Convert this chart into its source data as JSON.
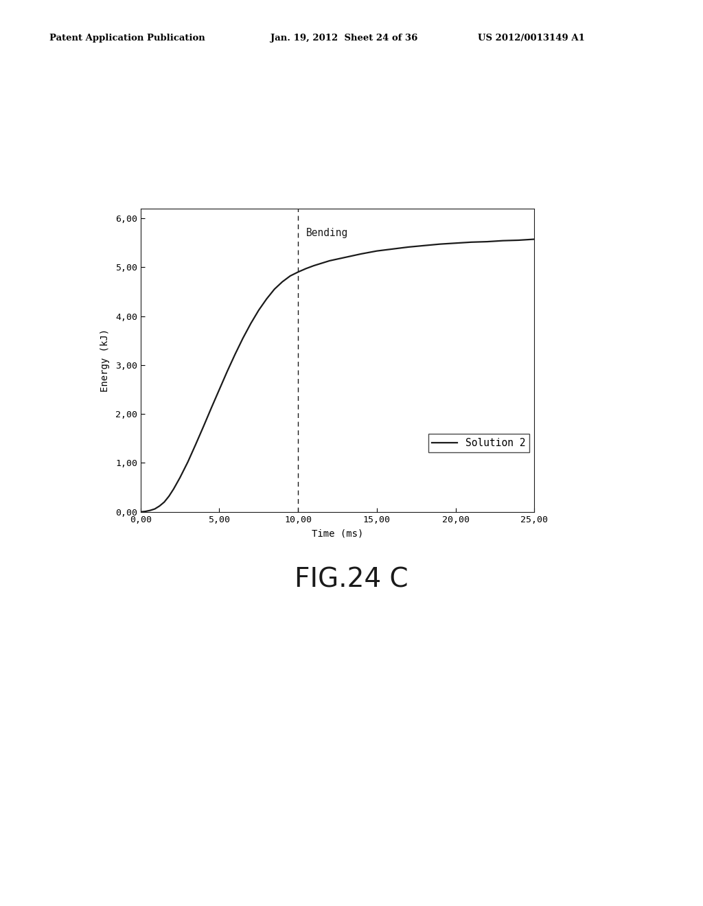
{
  "header_left": "Patent Application Publication",
  "header_mid": "Jan. 19, 2012  Sheet 24 of 36",
  "header_right": "US 2012/0013149 A1",
  "fig_label": "FIG.24 C",
  "xlabel": "Time (ms)",
  "ylabel": "Energy (kJ)",
  "xlim": [
    0,
    25
  ],
  "ylim": [
    0,
    6.2
  ],
  "xticks": [
    0.0,
    5.0,
    10.0,
    15.0,
    20.0,
    25.0
  ],
  "yticks": [
    0.0,
    1.0,
    2.0,
    3.0,
    4.0,
    5.0,
    6.0
  ],
  "xtick_labels": [
    "0,00",
    "5,00",
    "10,00",
    "15,00",
    "20,00",
    "25,00"
  ],
  "ytick_labels": [
    "0,00",
    "1,00",
    "2,00",
    "3,00",
    "4,00",
    "5,00",
    "6,00"
  ],
  "bending_x": 10.0,
  "bending_label": "Bending",
  "legend_label": "Solution 2",
  "line_color": "#1a1a1a",
  "background_color": "#ffffff",
  "curve_x": [
    0.0,
    0.3,
    0.6,
    0.9,
    1.2,
    1.5,
    1.8,
    2.1,
    2.5,
    3.0,
    3.5,
    4.0,
    4.5,
    5.0,
    5.5,
    6.0,
    6.5,
    7.0,
    7.5,
    8.0,
    8.5,
    9.0,
    9.5,
    10.0,
    10.5,
    11.0,
    12.0,
    13.0,
    14.0,
    15.0,
    16.0,
    17.0,
    18.0,
    19.0,
    20.0,
    21.0,
    22.0,
    23.0,
    24.0,
    25.0
  ],
  "curve_y": [
    0.0,
    0.01,
    0.03,
    0.06,
    0.12,
    0.2,
    0.32,
    0.47,
    0.7,
    1.02,
    1.38,
    1.75,
    2.13,
    2.5,
    2.87,
    3.22,
    3.55,
    3.85,
    4.12,
    4.35,
    4.55,
    4.7,
    4.82,
    4.9,
    4.97,
    5.03,
    5.13,
    5.2,
    5.27,
    5.33,
    5.37,
    5.41,
    5.44,
    5.47,
    5.49,
    5.51,
    5.52,
    5.54,
    5.55,
    5.57
  ]
}
